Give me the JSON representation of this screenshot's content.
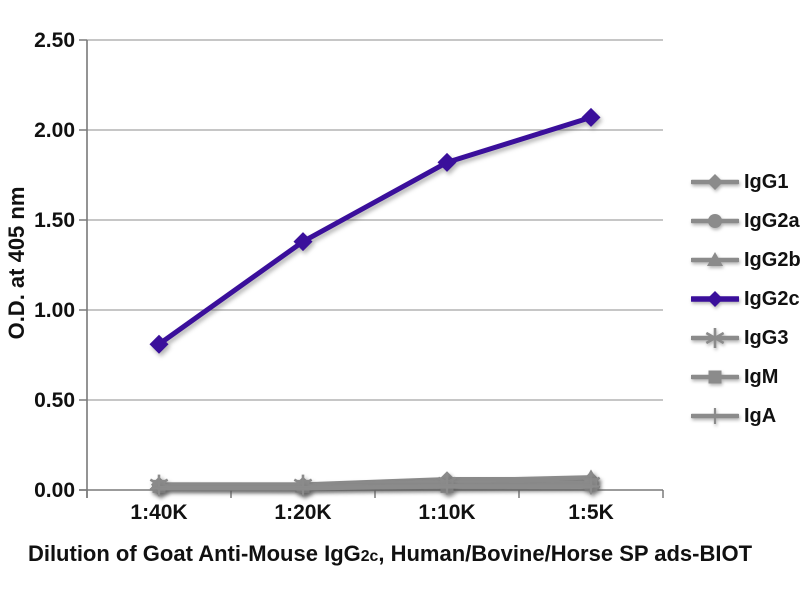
{
  "colors": {
    "accent_purple": "#3a0f9b",
    "series_gray": "#8b8b8b",
    "gridline": "#a3a3a3",
    "axis": "#7a7a7a",
    "text": "#111111",
    "background": "#ffffff"
  },
  "axis_titles": {
    "y": "O.D. at 405 nm",
    "x_prefix": "Dilution of Goat Anti-Mouse IgG",
    "x_sub": "2c",
    "x_suffix": ", Human/Bovine/Horse SP ads-BIOT"
  },
  "chart_data": {
    "type": "line",
    "title": "",
    "xlabel": "Dilution of Goat Anti-Mouse IgG2c, Human/Bovine/Horse SP ads-BIOT",
    "ylabel": "O.D. at 405 nm",
    "categories": [
      "1:40K",
      "1:20K",
      "1:10K",
      "1:5K"
    ],
    "ylim": [
      0,
      2.5
    ],
    "yticks": [
      "0.00",
      "0.50",
      "1.00",
      "1.50",
      "2.00",
      "2.50"
    ],
    "grid": true,
    "legend_position": "right",
    "series": [
      {
        "name": "IgG1",
        "marker": "diamond",
        "color": "#8b8b8b",
        "values": [
          0.03,
          0.03,
          0.06,
          0.06
        ]
      },
      {
        "name": "IgG2a",
        "marker": "circle",
        "color": "#8b8b8b",
        "values": [
          0.02,
          0.02,
          0.03,
          0.04
        ]
      },
      {
        "name": "IgG2b",
        "marker": "triangle",
        "color": "#8b8b8b",
        "values": [
          0.03,
          0.02,
          0.05,
          0.07
        ]
      },
      {
        "name": "IgG2c",
        "marker": "diamond",
        "color": "#3a0f9b",
        "values": [
          0.81,
          1.38,
          1.82,
          2.07
        ]
      },
      {
        "name": "IgG3",
        "marker": "asterisk",
        "color": "#8b8b8b",
        "values": [
          0.03,
          0.03,
          0.04,
          0.04
        ]
      },
      {
        "name": "IgM",
        "marker": "square",
        "color": "#8b8b8b",
        "values": [
          0.02,
          0.02,
          0.02,
          0.03
        ]
      },
      {
        "name": "IgA",
        "marker": "plus",
        "color": "#8b8b8b",
        "values": [
          0.01,
          0.01,
          0.02,
          0.02
        ]
      }
    ]
  }
}
